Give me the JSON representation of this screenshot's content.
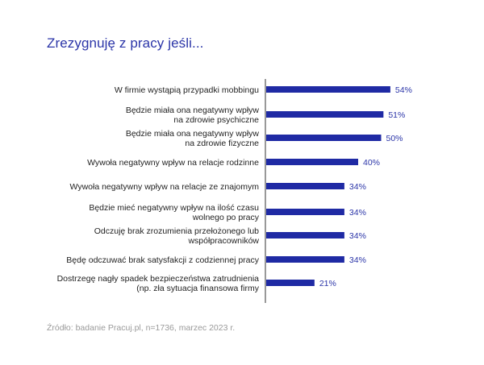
{
  "title": "Zrezygnuję z pracy jeśli...",
  "source": "Źródło: badanie Pracuj.pl, n=1736, marzec 2023 r.",
  "colors": {
    "bar": "#1f2aa4",
    "value": "#2b35a8",
    "axis": "#333333",
    "title": "#2b35a8"
  },
  "chart_data": {
    "type": "bar",
    "orientation": "horizontal",
    "title": "Zrezygnuję z pracy jeśli...",
    "xlabel": "",
    "ylabel": "",
    "xlim": [
      0,
      100
    ],
    "unit": "%",
    "categories": [
      [
        "W firmie wystąpią przypadki mobbingu"
      ],
      [
        "Będzie miała ona negatywny wpływ",
        "na zdrowie psychiczne"
      ],
      [
        "Będzie miała ona negatywny wpływ",
        "na zdrowie fizyczne"
      ],
      [
        "Wywoła negatywny wpływ na relacje rodzinne"
      ],
      [
        "Wywoła negatywny wpływ na relacje ze znajomym"
      ],
      [
        "Będzie mieć negatywny wpływ na ilość czasu",
        "wolnego po pracy"
      ],
      [
        "Odczuję brak zrozumienia przełożonego lub",
        "współpracowników"
      ],
      [
        "Będę odczuwać brak satysfakcji z codziennej pracy"
      ],
      [
        "Dostrzegę nagły spadek bezpieczeństwa zatrudnienia",
        "(np. zła sytuacja finansowa firmy"
      ]
    ],
    "values": [
      54,
      51,
      50,
      40,
      34,
      34,
      34,
      34,
      21
    ],
    "value_labels": [
      "54%",
      "51%",
      "50%",
      "40%",
      "34%",
      "34%",
      "34%",
      "34%",
      "21%"
    ]
  }
}
